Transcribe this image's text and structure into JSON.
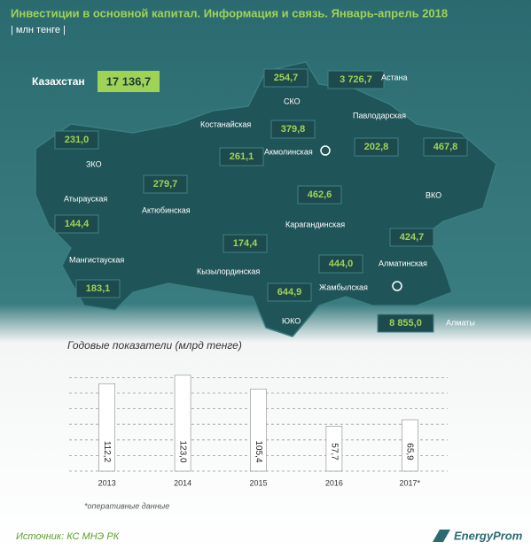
{
  "header": {
    "title": "Инвестиции в основной капитал. Информация и связь. Январь-апрель 2018",
    "subtitle": "| млн тенге |"
  },
  "total": {
    "name": "Казахстан",
    "value": "17 136,7"
  },
  "regions": [
    {
      "name": "ЗКО",
      "value": "231,0"
    },
    {
      "name": "Атырауская",
      "value": "144,4"
    },
    {
      "name": "Мангистауская",
      "value": "183,1"
    },
    {
      "name": "Актюбинская",
      "value": "279,7"
    },
    {
      "name": "Костанайская",
      "value": "261,1"
    },
    {
      "name": "СКО",
      "value": "254,7"
    },
    {
      "name": "Акмолинская",
      "value": "379,8"
    },
    {
      "name": "Астана",
      "value": "3 726,7"
    },
    {
      "name": "Павлодарская",
      "value": "202,8"
    },
    {
      "name": "ВКО",
      "value": "467,8"
    },
    {
      "name": "Карагандинская",
      "value": "462,6"
    },
    {
      "name": "Кызылординская",
      "value": "174,4"
    },
    {
      "name": "Жамбылская",
      "value": "444,0"
    },
    {
      "name": "ЮКО",
      "value": "644,9"
    },
    {
      "name": "Алматинская",
      "value": "424,7"
    },
    {
      "name": "Алматы",
      "value": "8 855,0"
    }
  ],
  "chart_data": {
    "type": "bar",
    "title": "Годовые показатели (млрд тенге)",
    "categories": [
      "2013",
      "2014",
      "2015",
      "2016",
      "2017*"
    ],
    "values": [
      112.2,
      123.0,
      105.4,
      57.7,
      65.9
    ],
    "value_labels": [
      "112,2",
      "123,0",
      "105,4",
      "57,7",
      "65,9"
    ],
    "color": "#ffffff",
    "ylim": [
      0,
      125
    ],
    "yticks": [
      0,
      20,
      40,
      60,
      80,
      100,
      120
    ],
    "grid": true,
    "footnote": "*оперативные данные"
  },
  "footer": {
    "source": "Источник: КС МНЭ РК",
    "logo": "EnergyProm"
  }
}
